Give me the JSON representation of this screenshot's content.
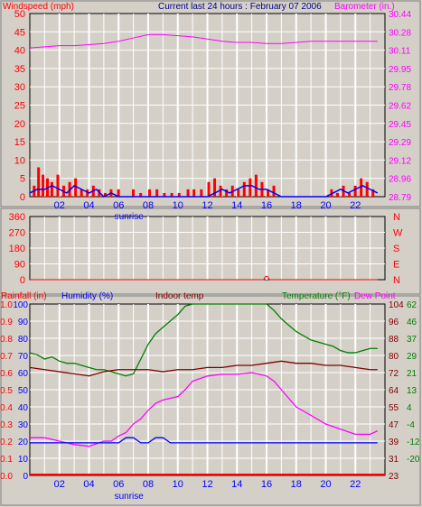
{
  "header": {
    "left_label": "Windspeed (mph)",
    "center_label": "Current last 24 hours : February 07 2006",
    "right_label": "Barometer (in.)"
  },
  "colors": {
    "red": "#ff0000",
    "blue": "#0000ff",
    "magenta": "#ff00ff",
    "green": "#008000",
    "darkred": "#8b0000",
    "maroon": "#800000",
    "plot_bg": "#d4d0c8",
    "grid": "#ffffff"
  },
  "x_axis": {
    "hours_ticks": [
      "02",
      "04",
      "06",
      "08",
      "10",
      "12",
      "14",
      "16",
      "18",
      "20",
      "22"
    ],
    "sunrise_label": "sunrise"
  },
  "chart_data": [
    {
      "id": "wind-baro",
      "type": "line",
      "left_axis": {
        "label": "Windspeed (mph)",
        "ticks": [
          "50",
          "45",
          "40",
          "35",
          "30",
          "25",
          "20",
          "15",
          "10",
          "5",
          "0"
        ],
        "range": [
          0,
          50
        ]
      },
      "right_axis": {
        "label": "Barometer (in.)",
        "ticks": [
          "30.44",
          "30.28",
          "30.11",
          "29.95",
          "29.78",
          "29.62",
          "29.45",
          "29.29",
          "29.12",
          "28.96",
          "28.79"
        ],
        "range": [
          28.79,
          30.44
        ]
      },
      "series": [
        {
          "name": "Barometer (in.)",
          "color": "magenta",
          "x": [
            0,
            1,
            2,
            3,
            4,
            5,
            6,
            7,
            8,
            9,
            10,
            11,
            12,
            13,
            14,
            15,
            16,
            17,
            18,
            19,
            20,
            21,
            22,
            23.5
          ],
          "y": [
            30.13,
            30.14,
            30.15,
            30.15,
            30.16,
            30.17,
            30.19,
            30.22,
            30.25,
            30.25,
            30.24,
            30.23,
            30.21,
            30.19,
            30.18,
            30.18,
            30.17,
            30.17,
            30.18,
            30.19,
            30.19,
            30.19,
            30.19,
            30.19
          ]
        }
      ],
      "wind_gust_hours": [
        0.2,
        0.5,
        0.8,
        1.1,
        1.4,
        1.8,
        2.2,
        2.6,
        3.0,
        3.4,
        3.8,
        4.2,
        4.6,
        5.0,
        5.4,
        5.9,
        6.4,
        6.9,
        7.4,
        8.0,
        8.5,
        9.0,
        9.5,
        10.0,
        10.6,
        11.0,
        11.5,
        12.0,
        12.4,
        12.8,
        13.2,
        13.6,
        14.0,
        14.4,
        14.8,
        15.2,
        15.6,
        16.0,
        16.4,
        20.3,
        20.7,
        21.1,
        21.5,
        21.9,
        22.3,
        22.7,
        23.1
      ],
      "wind_gust_values": [
        3,
        8,
        6,
        5,
        4,
        6,
        3,
        4,
        5,
        2,
        2,
        3,
        2,
        1,
        2,
        2,
        0,
        2,
        1,
        2,
        2,
        1,
        1,
        1,
        2,
        2,
        2,
        4,
        5,
        3,
        2,
        3,
        2,
        4,
        5,
        6,
        4,
        2,
        3,
        2,
        1,
        3,
        1,
        3,
        5,
        4,
        2
      ],
      "wind_avg_x": [
        0,
        0.5,
        1,
        1.5,
        2,
        2.5,
        3,
        3.5,
        4,
        4.5,
        5,
        5.5,
        6,
        7,
        8,
        9,
        10,
        11,
        12,
        12.5,
        13,
        13.5,
        14,
        14.5,
        15,
        15.5,
        16,
        16.5,
        17,
        18,
        19,
        20,
        20.5,
        21,
        21.5,
        22,
        22.5,
        23,
        23.5
      ],
      "wind_avg_y": [
        1,
        2,
        2,
        3,
        2,
        1,
        3,
        2,
        1,
        2,
        0,
        1,
        0,
        0,
        0,
        0,
        0,
        0,
        0,
        1,
        2,
        1,
        2,
        3,
        3,
        2,
        2,
        1,
        0,
        0,
        0,
        0,
        1,
        2,
        1,
        2,
        3,
        2,
        1
      ]
    },
    {
      "id": "direction",
      "type": "line",
      "left_axis": {
        "ticks": [
          "360",
          "270",
          "180",
          "90",
          "0"
        ],
        "range": [
          0,
          360
        ]
      },
      "right_axis": {
        "ticks": [
          "N",
          "W",
          "S",
          "E",
          "N"
        ]
      },
      "x": [
        0,
        15.8,
        15.9,
        16.0,
        16.1,
        16.2,
        23.5
      ],
      "y": [
        0,
        0,
        15,
        20,
        15,
        0,
        0
      ]
    },
    {
      "id": "temp-humidity",
      "type": "line",
      "top_labels": {
        "rainfall": "Rainfall (in)",
        "humidity": "Humidity (%)",
        "indoor": "Indoor temp",
        "temperature": "Temperature (°F)",
        "dewpoint": "Dew Point"
      },
      "rain_ticks": [
        "1.0",
        "0.9",
        "0.8",
        "0.7",
        "0.6",
        "0.5",
        "0.4",
        "0.3",
        "0.2",
        "0.1",
        "0.0"
      ],
      "humidity_ticks": [
        "100",
        "90",
        "80",
        "70",
        "60",
        "50",
        "40",
        "30",
        "20",
        "10",
        "0"
      ],
      "temp_ticks": [
        "104",
        "96",
        "88",
        "80",
        "72",
        "64",
        "55",
        "47",
        "39",
        "31",
        "23"
      ],
      "dew_ticks": [
        "62",
        "46",
        "37",
        "29",
        "21",
        "13",
        "4",
        "-4",
        "-12",
        "-20"
      ],
      "temp_range": [
        23,
        104
      ],
      "series": [
        {
          "name": "Temperature (°F)",
          "color": "green",
          "x": [
            0,
            0.5,
            1,
            1.5,
            2,
            2.5,
            3,
            3.5,
            4,
            4.5,
            5,
            5.5,
            6,
            6.5,
            7,
            7.5,
            8,
            8.5,
            9,
            9.5,
            10,
            10.5,
            11,
            16,
            16.5,
            17,
            17.5,
            18,
            18.5,
            19,
            19.5,
            20,
            20.5,
            21,
            21.5,
            22,
            22.5,
            23,
            23.5
          ],
          "y": [
            81,
            80,
            78,
            79,
            77,
            76,
            76,
            75,
            74,
            73,
            73,
            72,
            71,
            70,
            71,
            78,
            85,
            90,
            93,
            96,
            99,
            103,
            105,
            105,
            101,
            97,
            94,
            91,
            89,
            87,
            86,
            85,
            84,
            82,
            81,
            81,
            82,
            83,
            83
          ]
        },
        {
          "name": "Indoor temp",
          "color": "maroon",
          "x": [
            0,
            1,
            2,
            3,
            4,
            5,
            6,
            7,
            8,
            9,
            10,
            11,
            12,
            13,
            14,
            15,
            16,
            17,
            18,
            19,
            20,
            21,
            22,
            23,
            23.5
          ],
          "y": [
            74,
            73,
            72,
            71,
            70,
            72,
            73,
            73,
            73,
            72,
            73,
            73,
            74,
            74,
            75,
            75,
            76,
            77,
            76,
            76,
            75,
            75,
            74,
            73,
            73
          ]
        },
        {
          "name": "Humidity (%)",
          "color": "magenta",
          "x": [
            0,
            1,
            2,
            3,
            4,
            5,
            5.5,
            6,
            6.5,
            7,
            7.5,
            8,
            8.5,
            9,
            9.5,
            10,
            10.5,
            11,
            12,
            13,
            14,
            15,
            16,
            16.5,
            17,
            17.5,
            18,
            19,
            20,
            21,
            22,
            23,
            23.5
          ],
          "y": [
            22,
            22,
            20,
            18,
            17,
            20,
            20,
            23,
            25,
            30,
            33,
            38,
            42,
            44,
            45,
            46,
            50,
            55,
            58,
            59,
            59,
            60,
            58,
            55,
            50,
            45,
            40,
            35,
            30,
            27,
            24,
            24,
            26
          ]
        },
        {
          "name": "Dew Point",
          "color": "blue",
          "x": [
            0,
            6,
            6.5,
            7,
            7.5,
            8,
            8.5,
            9,
            9.5,
            10,
            23.5
          ],
          "y": [
            19,
            19,
            22,
            22,
            19,
            19,
            22,
            22,
            19,
            19,
            19
          ]
        }
      ]
    }
  ]
}
